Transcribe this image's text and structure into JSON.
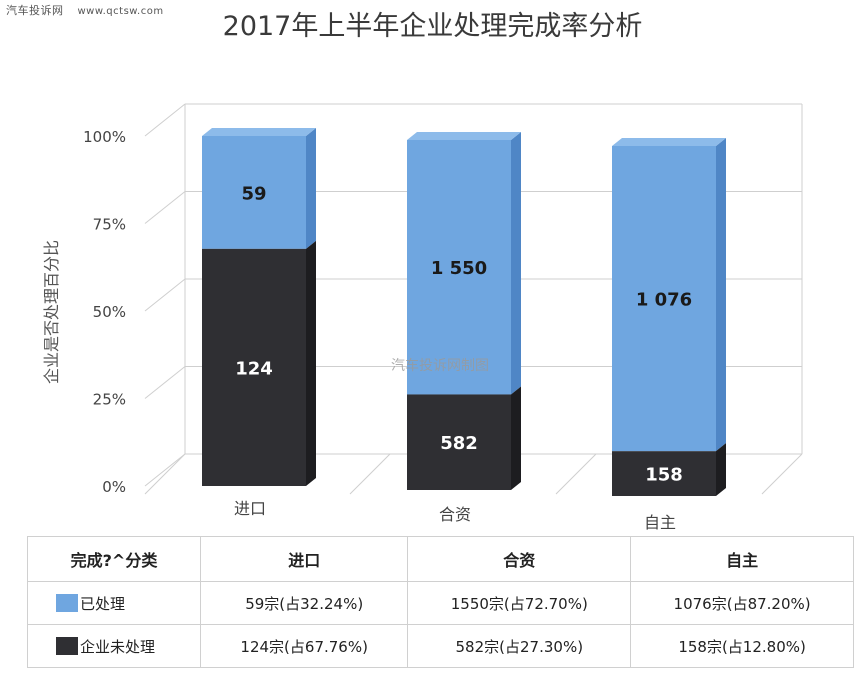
{
  "watermark": {
    "site_cn": "汽车投诉网",
    "site_url": "www.qctsw.com"
  },
  "center_watermark": "汽车投诉网制图",
  "colors": {
    "processed": "#6fa6e0",
    "unprocessed": "#2f2f33",
    "grid": "#cfcfcf"
  },
  "chart_data": {
    "type": "bar",
    "stacked": "percent",
    "title": "2017年上半年企业处理完成率分析",
    "ylabel": "企业是否处理百分比",
    "yticks": [
      "0%",
      "25%",
      "50%",
      "75%",
      "100%"
    ],
    "ylim": [
      0,
      100
    ],
    "categories": [
      "进口",
      "合资",
      "自主"
    ],
    "series": [
      {
        "name": "企业未处理",
        "values": [
          124,
          582,
          158
        ],
        "labels": [
          "124",
          "582",
          "158"
        ],
        "color": "#2f2f33"
      },
      {
        "name": "已处理",
        "values": [
          59,
          1550,
          1076
        ],
        "labels": [
          "59",
          "1 550",
          "1 076"
        ],
        "color": "#6fa6e0"
      }
    ]
  },
  "table": {
    "header": [
      "完成?^分类",
      "进口",
      "合资",
      "自主"
    ],
    "rows": [
      {
        "label": "已处理",
        "cells": [
          "59宗(占32.24%)",
          "1550宗(占72.70%)",
          "1076宗(占87.20%)"
        ]
      },
      {
        "label": "企业未处理",
        "cells": [
          "124宗(占67.76%)",
          "582宗(占27.30%)",
          "158宗(占12.80%)"
        ]
      }
    ]
  }
}
